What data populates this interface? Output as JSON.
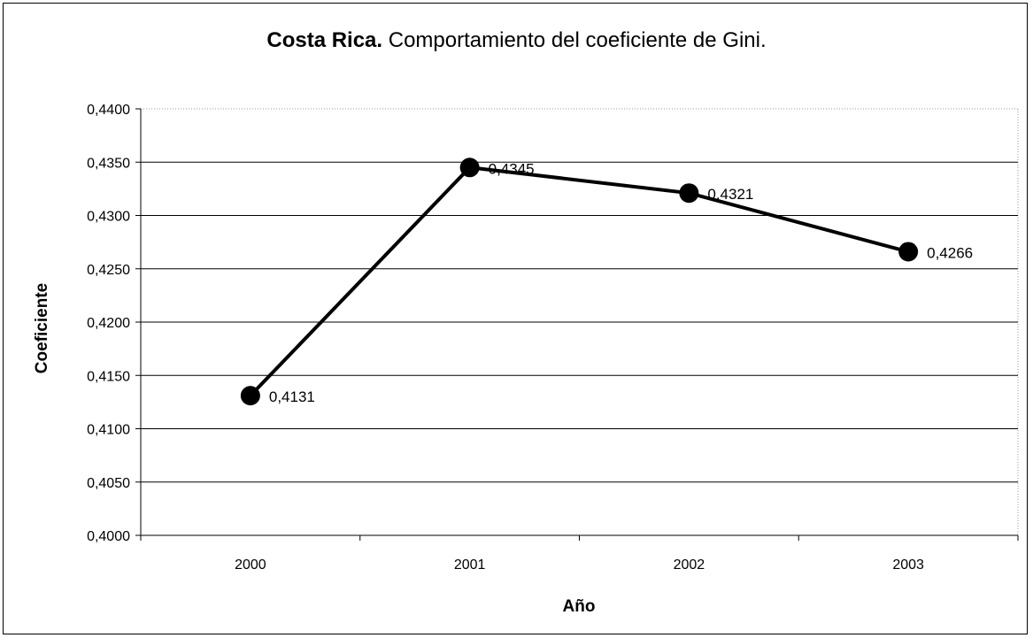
{
  "chart_data": {
    "type": "line",
    "title_bold": "Costa Rica.",
    "title_rest": " Comportamiento del coeficiente de Gini.",
    "xlabel": "Año",
    "ylabel": "Coeficiente",
    "categories": [
      "2000",
      "2001",
      "2002",
      "2003"
    ],
    "series": [
      {
        "values": [
          0.4131,
          0.4345,
          0.4321,
          0.4266
        ],
        "labels": [
          "0,4131",
          "0,4345",
          "0,4321",
          "0,4266"
        ],
        "color": "#000000",
        "marker": "circle"
      }
    ],
    "ylim": [
      0.4,
      0.44
    ],
    "yticks": [
      0.4,
      0.405,
      0.41,
      0.415,
      0.42,
      0.425,
      0.43,
      0.435,
      0.44
    ],
    "ytick_labels": [
      "0,4000",
      "0,4050",
      "0,4100",
      "0,4150",
      "0,4200",
      "0,4250",
      "0,4300",
      "0,4350",
      "0,4400"
    ],
    "grid": true,
    "legend": "none"
  }
}
